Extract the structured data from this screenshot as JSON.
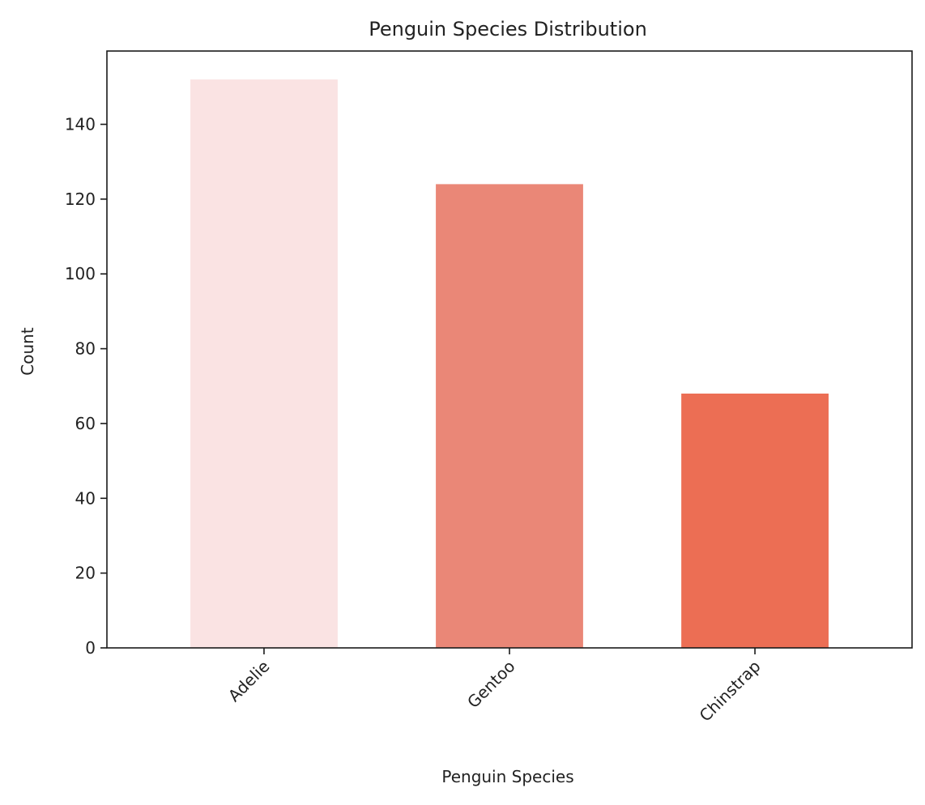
{
  "chart_data": {
    "type": "bar",
    "title": "Penguin Species Distribution",
    "xlabel": "Penguin Species",
    "ylabel": "Count",
    "categories": [
      "Adelie",
      "Gentoo",
      "Chinstrap"
    ],
    "values": [
      152,
      124,
      68
    ],
    "colors": [
      "#fae3e3",
      "#ea8777",
      "#ec6e54"
    ],
    "ylim": [
      0,
      159.6
    ],
    "yticks": [
      0,
      20,
      40,
      60,
      80,
      100,
      120,
      140
    ],
    "ytick_labels": [
      "0",
      "20",
      "40",
      "60",
      "80",
      "100",
      "120",
      "140"
    ],
    "xtick_rotation": -45,
    "grid": false,
    "legend": "none"
  }
}
